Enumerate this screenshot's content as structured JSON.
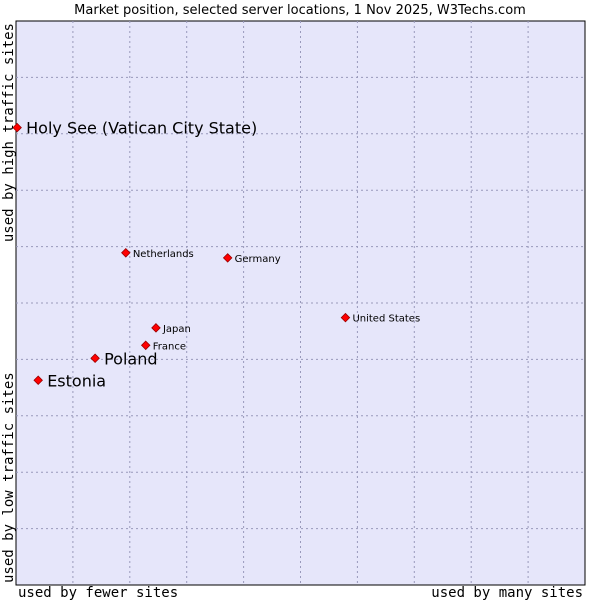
{
  "chart_data": {
    "type": "scatter",
    "title": "Market position, selected server locations, 1 Nov 2025, W3Techs.com",
    "xlabel_left": "used by fewer sites",
    "xlabel_right": "used by many sites",
    "ylabel_bottom": "used by low traffic sites",
    "ylabel_top": "used by high traffic sites",
    "xlim": [
      0,
      100
    ],
    "ylim": [
      0,
      100
    ],
    "grid": true,
    "colors": {
      "plot_bg": "#e6e6fa",
      "grid": "#9999bb",
      "point": "#ff0000",
      "point_edge": "#990000"
    },
    "points": [
      {
        "name": "Holy See (Vatican City State)",
        "x": 0.2,
        "y": 81.1,
        "emphasis": true
      },
      {
        "name": "Netherlands",
        "x": 19.3,
        "y": 58.9,
        "emphasis": false
      },
      {
        "name": "Germany",
        "x": 37.2,
        "y": 58.0,
        "emphasis": false
      },
      {
        "name": "United States",
        "x": 57.9,
        "y": 47.4,
        "emphasis": false
      },
      {
        "name": "Japan",
        "x": 24.6,
        "y": 45.6,
        "emphasis": false
      },
      {
        "name": "France",
        "x": 22.8,
        "y": 42.5,
        "emphasis": false
      },
      {
        "name": "Poland",
        "x": 13.9,
        "y": 40.2,
        "emphasis": true
      },
      {
        "name": "Estonia",
        "x": 3.9,
        "y": 36.3,
        "emphasis": true
      }
    ]
  }
}
